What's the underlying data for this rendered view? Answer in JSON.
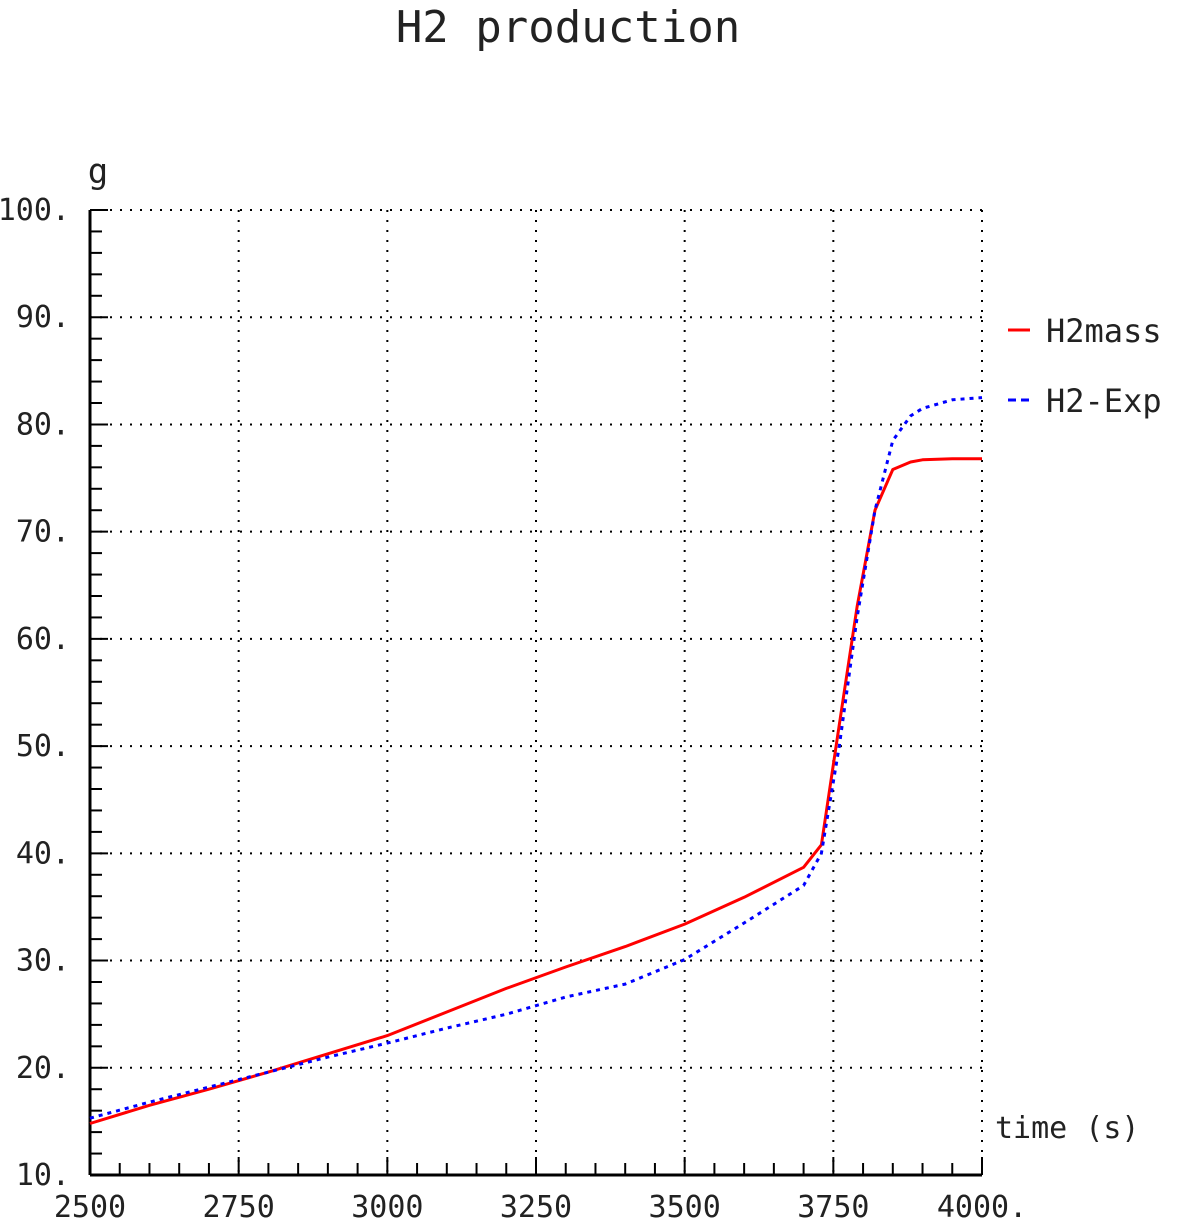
{
  "chart_data": {
    "type": "line",
    "title": "H2 production",
    "ylabel": "g",
    "xlabel": "time (s)",
    "xlim": [
      2500,
      4000
    ],
    "ylim": [
      10,
      100
    ],
    "x_ticks": [
      2500,
      2750,
      3000,
      3250,
      3500,
      3750,
      4000
    ],
    "x_tick_labels": [
      "2500",
      "2750",
      "3000",
      "3250",
      "3500",
      "3750",
      "4000."
    ],
    "y_ticks": [
      10,
      20,
      30,
      40,
      50,
      60,
      70,
      80,
      90,
      100
    ],
    "y_tick_labels": [
      "10.",
      "20.",
      "30.",
      "40.",
      "50.",
      "60.",
      "70.",
      "80.",
      "90.",
      "100."
    ],
    "grid": true,
    "legend_position": "right",
    "series": [
      {
        "name": "H2mass",
        "color": "#ff0000",
        "style": "solid",
        "x": [
          2500,
          2600,
          2700,
          2800,
          2900,
          3000,
          3100,
          3200,
          3300,
          3400,
          3500,
          3600,
          3700,
          3730,
          3760,
          3790,
          3820,
          3850,
          3880,
          3900,
          3950,
          4000
        ],
        "y": [
          14.8,
          16.5,
          18.0,
          19.6,
          21.3,
          23.0,
          25.2,
          27.4,
          29.4,
          31.3,
          33.4,
          35.9,
          38.7,
          40.8,
          52.0,
          63.0,
          72.0,
          75.8,
          76.5,
          76.7,
          76.8,
          76.8
        ]
      },
      {
        "name": "H2-Exp",
        "color": "#0000ff",
        "style": "dotted",
        "x": [
          2500,
          2600,
          2700,
          2800,
          2900,
          3000,
          3100,
          3200,
          3300,
          3400,
          3500,
          3600,
          3700,
          3730,
          3760,
          3790,
          3820,
          3850,
          3880,
          3900,
          3950,
          4000
        ],
        "y": [
          15.3,
          16.8,
          18.2,
          19.6,
          21.0,
          22.3,
          23.7,
          25.0,
          26.6,
          27.8,
          30.1,
          33.5,
          37.0,
          40.0,
          50.0,
          62.0,
          72.0,
          78.5,
          80.8,
          81.5,
          82.3,
          82.5
        ]
      }
    ]
  }
}
